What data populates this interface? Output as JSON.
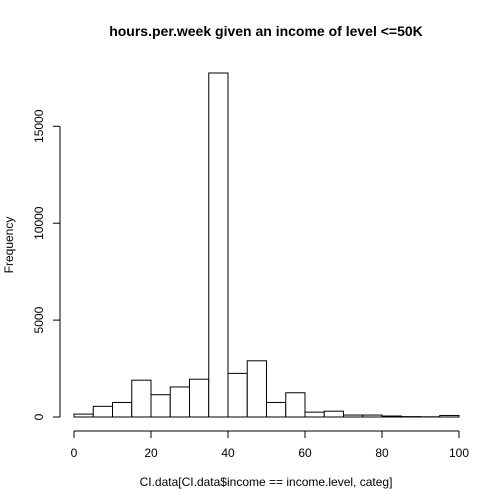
{
  "chart_data": {
    "type": "bar",
    "title": "hours.per.week given an income of level <=50K",
    "xlabel": "CI.data[CI.data$income == income.level, categ]",
    "ylabel": "Frequency",
    "bin_edges": [
      0,
      5,
      10,
      15,
      20,
      25,
      30,
      35,
      40,
      45,
      50,
      55,
      60,
      65,
      70,
      75,
      80,
      85,
      90,
      95,
      100
    ],
    "values": [
      150,
      550,
      750,
      1900,
      1150,
      1550,
      1950,
      17750,
      2250,
      2900,
      750,
      1250,
      250,
      300,
      100,
      100,
      50,
      20,
      10,
      80
    ],
    "xlim": [
      0,
      100
    ],
    "ylim": [
      0,
      17750
    ],
    "x_ticks": [
      0,
      20,
      40,
      60,
      80,
      100
    ],
    "x_tick_labels": [
      "0",
      "20",
      "40",
      "60",
      "80",
      "100"
    ],
    "y_ticks": [
      0,
      5000,
      10000,
      15000
    ],
    "y_tick_labels": [
      "0",
      "5000",
      "10000",
      "15000"
    ]
  }
}
